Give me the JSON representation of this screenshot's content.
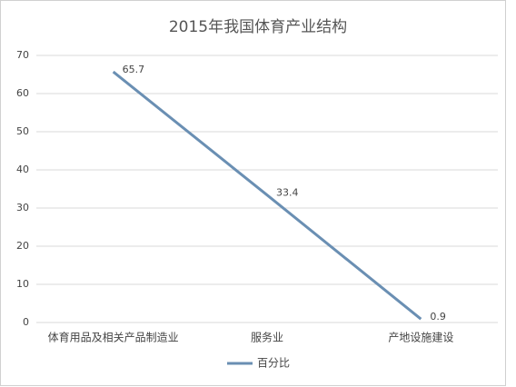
{
  "chart_data": {
    "type": "line",
    "title": "2015年我国体育产业结构",
    "categories": [
      "体育用品及相关产品制造业",
      "服务业",
      "产地设施建设"
    ],
    "series": [
      {
        "name": "百分比",
        "color": "#6a8fb3",
        "values": [
          65.7,
          33.4,
          0.9
        ]
      }
    ],
    "ylim": [
      0,
      70
    ],
    "yticks": [
      0,
      10,
      20,
      30,
      40,
      50,
      60,
      70
    ],
    "grid": true,
    "legend": "bottom"
  }
}
